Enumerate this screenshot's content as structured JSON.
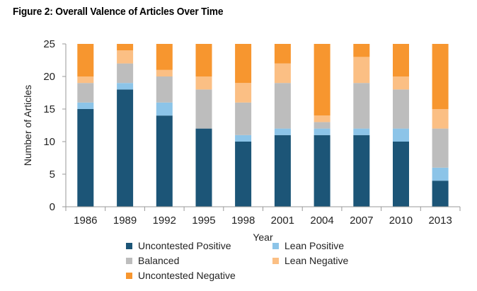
{
  "figure": {
    "title": "Figure 2: Overall Valence of Articles Over Time"
  },
  "chart_data": {
    "type": "bar",
    "stacked": true,
    "title": "Figure 2: Overall Valence of Articles Over Time",
    "xlabel": "Year",
    "ylabel": "Number of Articles",
    "ylim": [
      0,
      25
    ],
    "yticks": [
      "0",
      "5",
      "10",
      "15",
      "20",
      "25"
    ],
    "grid": false,
    "legend_position": "bottom",
    "categories": [
      "1986",
      "1989",
      "1992",
      "1995",
      "1998",
      "2001",
      "2004",
      "2007",
      "2010",
      "2013"
    ],
    "series": [
      {
        "name": "Uncontested Positive",
        "color": "#1c5577",
        "values": [
          15,
          18,
          14,
          12,
          10,
          11,
          11,
          11,
          10,
          4
        ]
      },
      {
        "name": "Lean Positive",
        "color": "#8cc4e8",
        "values": [
          1,
          1,
          2,
          0,
          1,
          1,
          1,
          1,
          2,
          2
        ]
      },
      {
        "name": "Balanced",
        "color": "#bdbdbd",
        "values": [
          3,
          3,
          4,
          6,
          5,
          7,
          1,
          7,
          6,
          6
        ]
      },
      {
        "name": "Lean Negative",
        "color": "#fbbf84",
        "values": [
          1,
          2,
          1,
          2,
          3,
          3,
          1,
          4,
          2,
          3
        ]
      },
      {
        "name": "Uncontested Negative",
        "color": "#f7962f",
        "values": [
          5,
          1,
          4,
          5,
          6,
          3,
          11,
          2,
          5,
          10
        ]
      }
    ]
  }
}
